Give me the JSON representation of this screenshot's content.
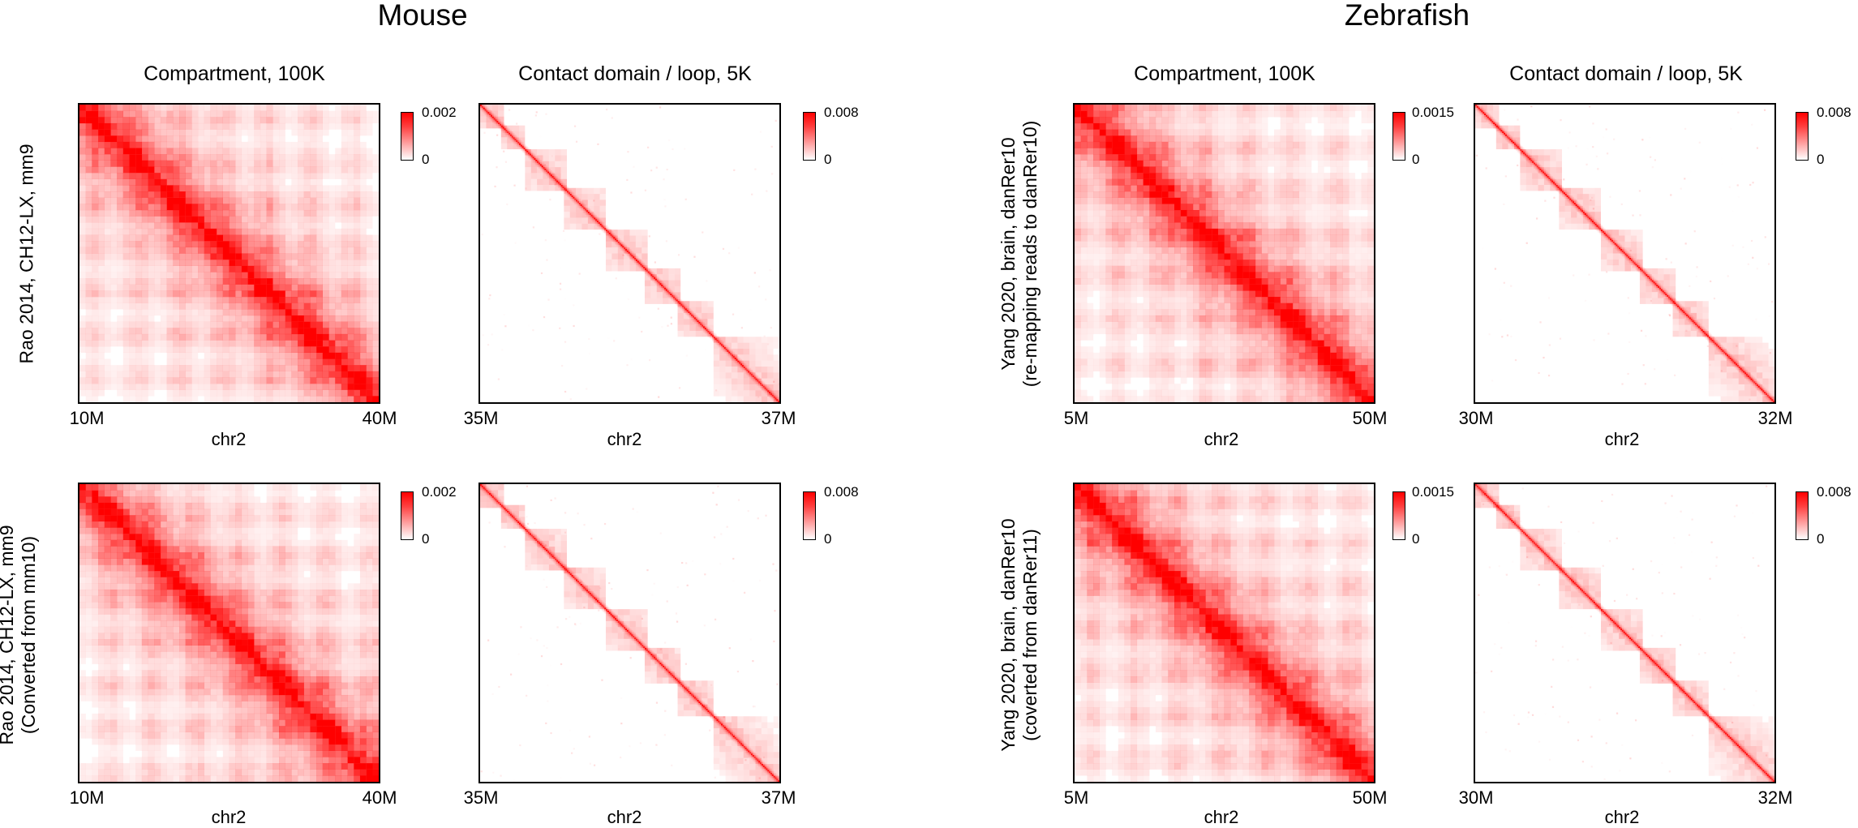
{
  "chart_data": {
    "type": "heatmap",
    "species_headers": [
      "Mouse",
      "Zebrafish"
    ],
    "column_titles": [
      "Compartment, 100K",
      "Contact domain / loop, 5K",
      "Compartment, 100K",
      "Contact domain / loop, 5K"
    ],
    "row_labels": [
      {
        "line1": "Rao 2014, CH12-LX, mm9",
        "line2": ""
      },
      {
        "line1": "Rao 2014, CH12-LX, mm9",
        "line2": "(Converted from mm10)"
      },
      {
        "line1": "Yang 2020, brain, danRer10",
        "line2": "(re-mapping reads to danRer10)"
      },
      {
        "line1": "Yang 2020, brain, danRer10",
        "line2": "(coverted from danRer11)"
      }
    ],
    "x_axis_label": "chr2",
    "colormap": [
      "#ffffff",
      "#ff0000"
    ],
    "panels": [
      {
        "id": "mouse-compartment-row1",
        "species": "Mouse",
        "resolution": "100K",
        "chrom": "chr2",
        "start": "10M",
        "end": "40M",
        "vmin": "0",
        "vmax": "0.002",
        "pattern": "compartment"
      },
      {
        "id": "mouse-domain-row1",
        "species": "Mouse",
        "resolution": "5K",
        "chrom": "chr2",
        "start": "35M",
        "end": "37M",
        "vmin": "0",
        "vmax": "0.008",
        "pattern": "domain"
      },
      {
        "id": "zebrafish-compartment-row1",
        "species": "Zebrafish",
        "resolution": "100K",
        "chrom": "chr2",
        "start": "5M",
        "end": "50M",
        "vmin": "0",
        "vmax": "0.0015",
        "pattern": "compartment"
      },
      {
        "id": "zebrafish-domain-row1",
        "species": "Zebrafish",
        "resolution": "5K",
        "chrom": "chr2",
        "start": "30M",
        "end": "32M",
        "vmin": "0",
        "vmax": "0.008",
        "pattern": "domain"
      },
      {
        "id": "mouse-compartment-row2",
        "species": "Mouse",
        "resolution": "100K",
        "chrom": "chr2",
        "start": "10M",
        "end": "40M",
        "vmin": "0",
        "vmax": "0.002",
        "pattern": "compartment"
      },
      {
        "id": "mouse-domain-row2",
        "species": "Mouse",
        "resolution": "5K",
        "chrom": "chr2",
        "start": "35M",
        "end": "37M",
        "vmin": "0",
        "vmax": "0.008",
        "pattern": "domain"
      },
      {
        "id": "zebrafish-compartment-row2",
        "species": "Zebrafish",
        "resolution": "100K",
        "chrom": "chr2",
        "start": "5M",
        "end": "50M",
        "vmin": "0",
        "vmax": "0.0015",
        "pattern": "compartment"
      },
      {
        "id": "zebrafish-domain-row2",
        "species": "Zebrafish",
        "resolution": "5K",
        "chrom": "chr2",
        "start": "30M",
        "end": "32M",
        "vmin": "0",
        "vmax": "0.008",
        "pattern": "domain"
      }
    ]
  }
}
